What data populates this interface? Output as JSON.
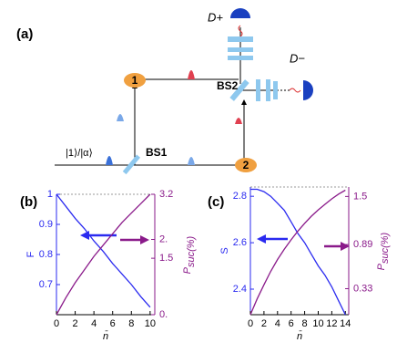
{
  "diagram": {
    "panel_label": "(a)",
    "detector_plus": "D+",
    "detector_minus": "D−",
    "bs2": "BS2",
    "bs1": "BS1",
    "node1": "1",
    "node2": "2",
    "input_state": "|1⟩/|α⟩"
  },
  "chart_data": [
    {
      "type": "line",
      "panel_label": "(b)",
      "xlabel": "n̄",
      "ylabel": "F",
      "y2label": "P",
      "y2label_sub": "suc(%)",
      "x": [
        0,
        1,
        2,
        3,
        4,
        5,
        6,
        7,
        8,
        9,
        10
      ],
      "xlim": [
        0,
        10.5
      ],
      "xticks": [
        0,
        2,
        4,
        6,
        8,
        10
      ],
      "ylim": [
        0.6,
        1.0
      ],
      "yticks": [
        0.7,
        0.8,
        0.9,
        1
      ],
      "y2lim": [
        0,
        3.2
      ],
      "y2ticks": [
        {
          "value": 0,
          "label": "0."
        },
        1.5,
        {
          "value": 2,
          "label": "2."
        },
        3.2
      ],
      "series": [
        {
          "color": "#2a2af0",
          "values": [
            1.0,
            0.96,
            0.92,
            0.885,
            0.845,
            0.81,
            0.77,
            0.735,
            0.7,
            0.66,
            0.625
          ]
        },
        {
          "color": "#8a1a8a",
          "axis": "y2",
          "values": [
            0,
            0.45,
            0.85,
            1.2,
            1.55,
            1.85,
            2.15,
            2.45,
            2.7,
            2.95,
            3.2
          ]
        }
      ]
    },
    {
      "type": "line",
      "panel_label": "(c)",
      "xlabel": "n̄",
      "ylabel": "S",
      "y2label": "P",
      "y2label_sub": "suc(%)",
      "x": [
        0,
        1,
        2,
        3,
        4,
        5,
        6,
        7,
        8,
        9,
        10,
        11,
        12,
        13,
        14
      ],
      "xlim": [
        0,
        14.5
      ],
      "xticks": [
        0,
        2,
        4,
        6,
        8,
        10,
        12,
        14
      ],
      "ylim": [
        2.29,
        2.84
      ],
      "yticks": [
        2.4,
        2.6,
        2.8
      ],
      "y2lim": [
        0,
        1.62
      ],
      "y2ticks": [
        0.33,
        0.89,
        1.5
      ],
      "series": [
        {
          "color": "#2a2af0",
          "values": [
            2.83,
            2.83,
            2.82,
            2.8,
            2.77,
            2.74,
            2.69,
            2.64,
            2.6,
            2.55,
            2.5,
            2.46,
            2.41,
            2.35,
            2.29
          ]
        },
        {
          "color": "#8a1a8a",
          "axis": "y2",
          "values": [
            0,
            0.2,
            0.38,
            0.55,
            0.7,
            0.83,
            0.95,
            1.06,
            1.16,
            1.25,
            1.33,
            1.4,
            1.47,
            1.53,
            1.58
          ]
        }
      ]
    }
  ]
}
